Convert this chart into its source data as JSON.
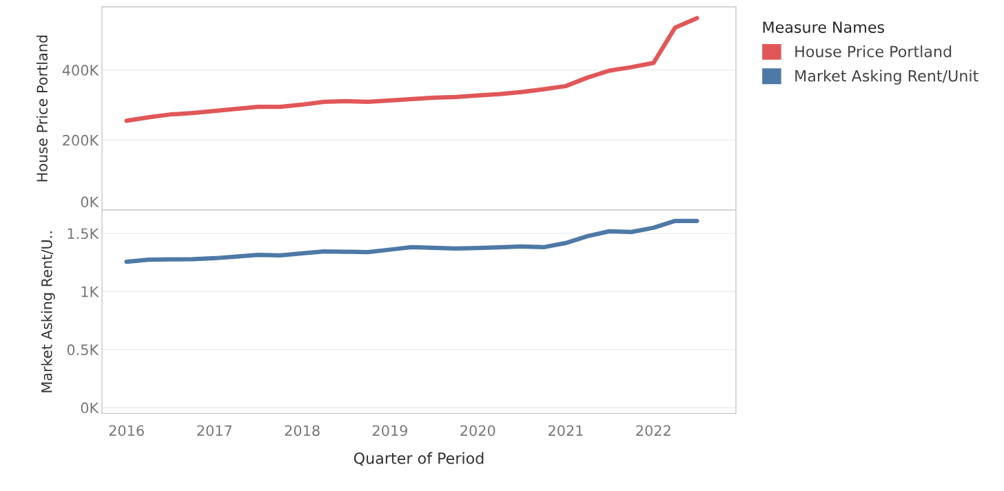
{
  "chart_data": [
    {
      "type": "line",
      "ylabel": "House Price Portland",
      "legend_title": "Measure Names",
      "legend": "right",
      "grid": "y",
      "tick_labels": "y",
      "line_style": "solid",
      "marker": "none",
      "x": [
        "2016-01",
        "2016-04",
        "2016-07",
        "2016-10",
        "2017-01",
        "2017-04",
        "2017-07",
        "2017-10",
        "2018-01",
        "2018-04",
        "2018-07",
        "2018-10",
        "2019-01",
        "2019-04",
        "2019-07",
        "2019-10",
        "2020-01",
        "2020-04",
        "2020-07",
        "2020-10",
        "2021-01",
        "2021-04",
        "2021-07",
        "2021-10",
        "2022-01",
        "2022-04",
        "2022-07"
      ],
      "xlim": [
        "2015-09-21",
        "2022-12-10"
      ],
      "ylim": [
        0,
        580000
      ],
      "yticks": [
        {
          "value": 0,
          "label": "0K"
        },
        {
          "value": 200000,
          "label": "200K"
        },
        {
          "value": 400000,
          "label": "400K"
        }
      ],
      "series": [
        {
          "name": "House Price Portland",
          "color": "#e15759",
          "values": [
            255000,
            265000,
            273000,
            277000,
            283000,
            289000,
            295000,
            295000,
            301000,
            309000,
            311000,
            309000,
            313000,
            317000,
            321000,
            323000,
            327000,
            331000,
            337000,
            345000,
            354000,
            378000,
            398000,
            408000,
            420000,
            521000,
            548000
          ]
        }
      ]
    },
    {
      "type": "line",
      "ylabel": "Market Asking Rent/U..",
      "xlabel": "Quarter of Period",
      "legend": "right",
      "grid": "y",
      "line_style": "solid",
      "marker": "none",
      "x": [
        "2016-01",
        "2016-04",
        "2016-07",
        "2016-10",
        "2017-01",
        "2017-04",
        "2017-07",
        "2017-10",
        "2018-01",
        "2018-04",
        "2018-07",
        "2018-10",
        "2019-01",
        "2019-04",
        "2019-07",
        "2019-10",
        "2020-01",
        "2020-04",
        "2020-07",
        "2020-10",
        "2021-01",
        "2021-04",
        "2021-07",
        "2021-10",
        "2022-01",
        "2022-04",
        "2022-07"
      ],
      "xlim": [
        "2015-09-21",
        "2022-12-10"
      ],
      "xticks": [
        {
          "value": "2016-01-01",
          "label": "2016"
        },
        {
          "value": "2017-01-01",
          "label": "2017"
        },
        {
          "value": "2018-01-01",
          "label": "2018"
        },
        {
          "value": "2019-01-01",
          "label": "2019"
        },
        {
          "value": "2020-01-01",
          "label": "2020"
        },
        {
          "value": "2021-01-01",
          "label": "2021"
        },
        {
          "value": "2022-01-01",
          "label": "2022"
        }
      ],
      "ylim": [
        -50,
        1700
      ],
      "yticks": [
        {
          "value": 0,
          "label": "0K"
        },
        {
          "value": 500,
          "label": "0.5K"
        },
        {
          "value": 1000,
          "label": "1K"
        },
        {
          "value": 1500,
          "label": "1.5K"
        }
      ],
      "series": [
        {
          "name": "Market Asking Rent/Unit",
          "color": "#4e79a7",
          "values": [
            1256,
            1274,
            1276,
            1278,
            1286,
            1300,
            1315,
            1310,
            1328,
            1345,
            1342,
            1339,
            1360,
            1381,
            1375,
            1369,
            1374,
            1380,
            1387,
            1381,
            1417,
            1476,
            1518,
            1512,
            1548,
            1607,
            1607
          ]
        }
      ]
    }
  ]
}
